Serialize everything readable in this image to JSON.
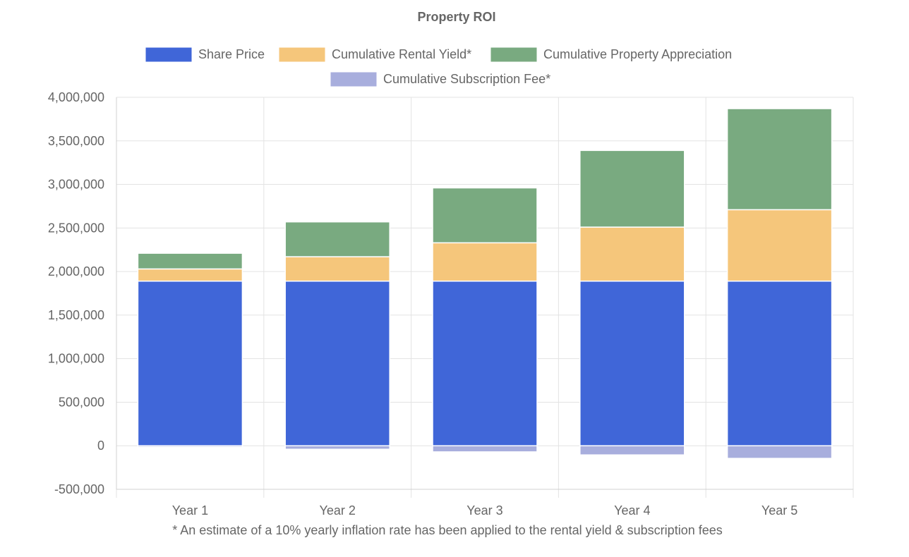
{
  "chart_data": {
    "type": "bar",
    "stacked": true,
    "title": "Property ROI",
    "categories": [
      "Year 1",
      "Year 2",
      "Year 3",
      "Year 4",
      "Year 5"
    ],
    "series": [
      {
        "name": "Share Price",
        "color": "#4066d8",
        "values": [
          1890000,
          1890000,
          1890000,
          1890000,
          1890000
        ]
      },
      {
        "name": "Cumulative Rental Yield*",
        "color": "#f5c67b",
        "values": [
          140000,
          280000,
          440000,
          620000,
          820000
        ]
      },
      {
        "name": "Cumulative Property Appreciation",
        "color": "#79aa80",
        "values": [
          180000,
          400000,
          630000,
          880000,
          1160000
        ]
      },
      {
        "name": "Cumulative Subscription Fee*",
        "color": "#a8aedd",
        "values": [
          -15000,
          -40000,
          -70000,
          -105000,
          -145000
        ]
      }
    ],
    "ylim": [
      -500000,
      4000000
    ],
    "y_ticks": [
      "4,000,000",
      "3,500,000",
      "3,000,000",
      "2,500,000",
      "2,000,000",
      "1,500,000",
      "1,000,000",
      "500,000",
      "0",
      "-500,000"
    ],
    "y_tick_values": [
      4000000,
      3500000,
      3000000,
      2500000,
      2000000,
      1500000,
      1000000,
      500000,
      0,
      -500000
    ],
    "legend_position": "top",
    "grid": true,
    "footnote": "* An estimate of a 10% yearly inflation rate has been applied to the rental yield & subscription fees"
  }
}
